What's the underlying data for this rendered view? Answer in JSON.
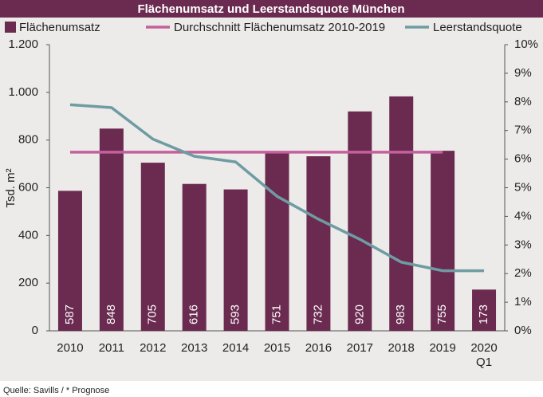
{
  "chart_data": {
    "type": "bar",
    "title": "Flächenumsatz und Leerstandsquote München",
    "y_label": "Tsd. m²",
    "source": "Quelle: Savills / * Prognose",
    "categories": [
      "2010",
      "2011",
      "2012",
      "2013",
      "2014",
      "2015",
      "2016",
      "2017",
      "2018",
      "2019",
      "2020 Q1"
    ],
    "series": [
      {
        "name": "Flächenumsatz",
        "type": "bar",
        "color": "#6b2b50",
        "values": [
          587,
          848,
          705,
          616,
          593,
          751,
          732,
          920,
          983,
          755,
          173
        ]
      },
      {
        "name": "Durchschnitt Flächenumsatz 2010-2019",
        "type": "line",
        "color": "#c4619c",
        "values": [
          749,
          749,
          749,
          749,
          749,
          749,
          749,
          749,
          749,
          749,
          null
        ]
      },
      {
        "name": "Leerstandsquote",
        "type": "line",
        "axis": "y2",
        "color": "#6e9ca2",
        "values": [
          7.9,
          7.8,
          6.7,
          6.1,
          5.9,
          4.7,
          3.9,
          3.2,
          2.4,
          2.1,
          2.1
        ]
      }
    ],
    "ylim": [
      0,
      1200
    ],
    "yticks": [
      0,
      200,
      400,
      600,
      800,
      {
        "value": 1000,
        "label": "1.000"
      },
      {
        "value": 1200,
        "label": "1.200"
      }
    ],
    "y2lim": [
      0,
      10
    ],
    "y2ticks": [
      {
        "value": 0,
        "label": "0%"
      },
      {
        "value": 1,
        "label": "1%"
      },
      {
        "value": 2,
        "label": "2%"
      },
      {
        "value": 3,
        "label": "3%"
      },
      {
        "value": 4,
        "label": "4%"
      },
      {
        "value": 5,
        "label": "5%"
      },
      {
        "value": 6,
        "label": "6%"
      },
      {
        "value": 7,
        "label": "7%"
      },
      {
        "value": 8,
        "label": "8%"
      },
      {
        "value": 9,
        "label": "9%"
      },
      {
        "value": 10,
        "label": "10%"
      }
    ]
  }
}
